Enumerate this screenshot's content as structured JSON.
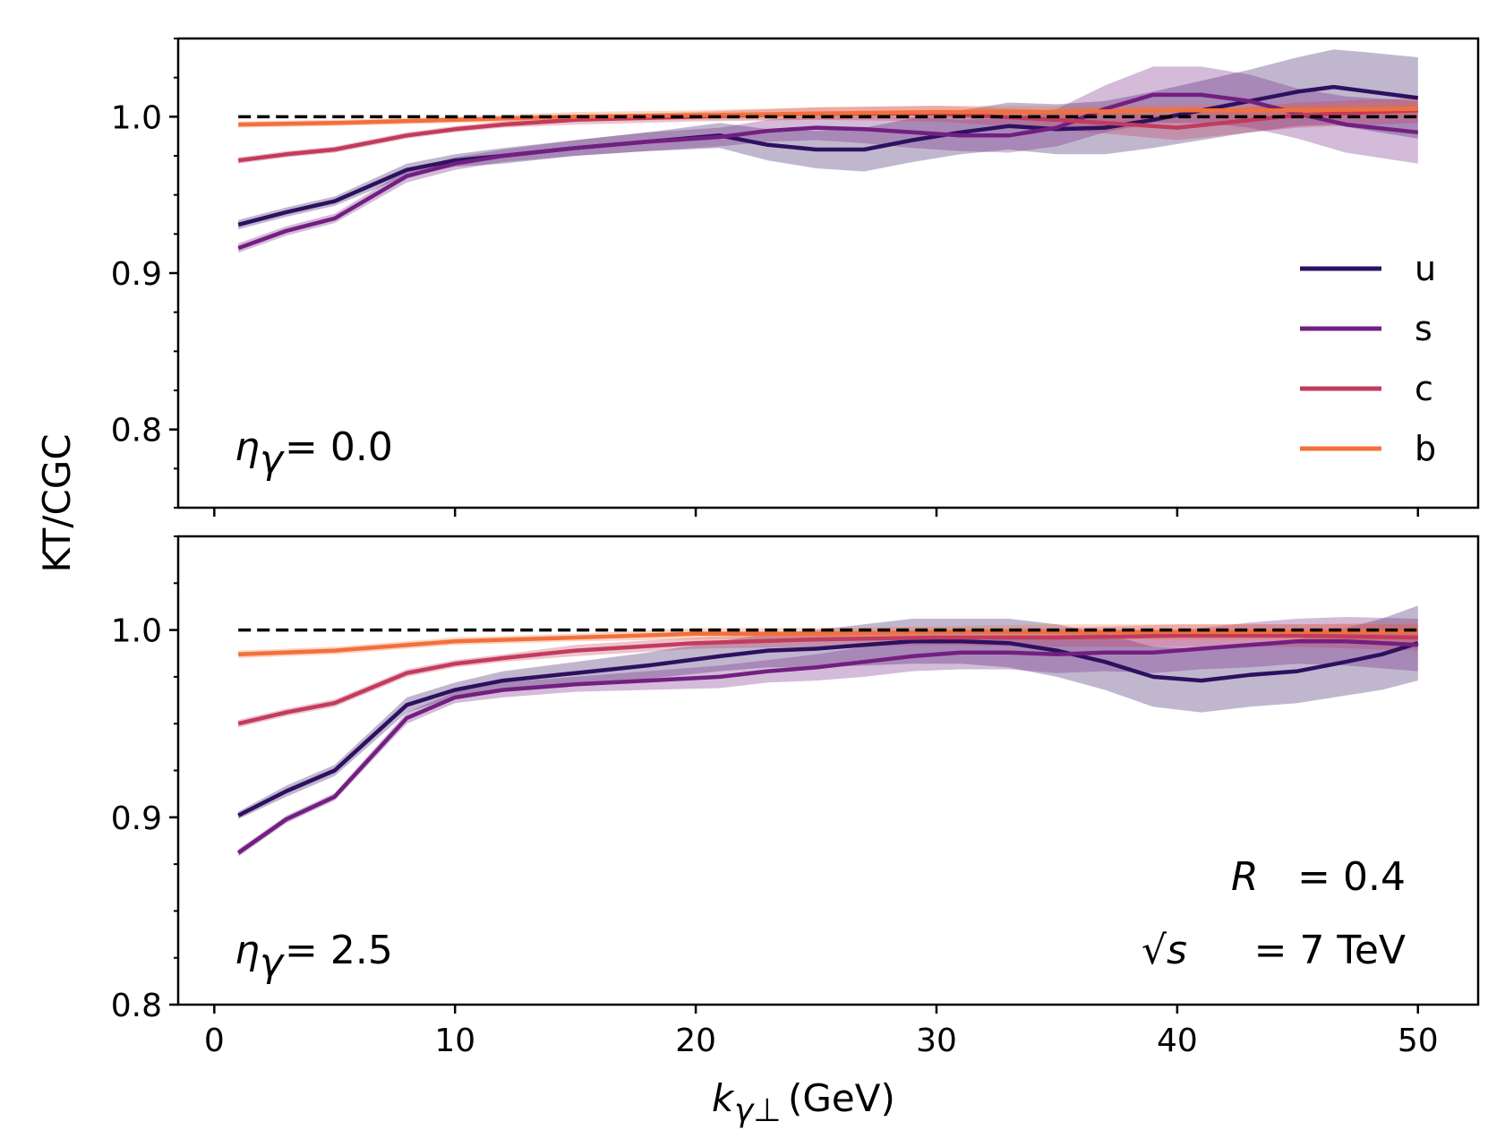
{
  "chart_data": {
    "type": "line",
    "ylabel": "KT/CGC",
    "xlabel": "k",
    "xlabel_sub": "γ⊥",
    "xlabel_unit": "(GeV)",
    "xlim": [
      -1.5,
      52.5
    ],
    "xticks": [
      0,
      10,
      20,
      30,
      40,
      50
    ],
    "legend": [
      "u",
      "s",
      "c",
      "b"
    ],
    "colors": {
      "u": "#2d1160",
      "s": "#721f81",
      "c": "#c33b5c",
      "b": "#f2703c",
      "reference": "#000000"
    },
    "reference_line": 1.0,
    "panels": [
      {
        "name": "top",
        "eta_label": "η",
        "eta_sub": "γ",
        "eta_value": "= 0.0",
        "ylim": [
          0.75,
          1.05
        ],
        "yticks": [
          "0.8",
          "0.9",
          "1.0"
        ],
        "series": [
          {
            "name": "u",
            "x": [
              1,
              3,
              5,
              8,
              10,
              12,
              15,
              18,
              21,
              23,
              25,
              27,
              29,
              31,
              33,
              35,
              37,
              39,
              41,
              43,
              45,
              46.5,
              48,
              50
            ],
            "y": [
              0.931,
              0.939,
              0.946,
              0.966,
              0.972,
              0.975,
              0.98,
              0.984,
              0.988,
              0.982,
              0.979,
              0.979,
              0.985,
              0.99,
              0.994,
              0.992,
              0.993,
              0.998,
              1.004,
              1.01,
              1.016,
              1.019,
              1.016,
              1.012
            ],
            "band": [
              0.003,
              0.003,
              0.003,
              0.004,
              0.004,
              0.005,
              0.005,
              0.006,
              0.008,
              0.01,
              0.012,
              0.014,
              0.014,
              0.014,
              0.015,
              0.016,
              0.017,
              0.018,
              0.019,
              0.02,
              0.022,
              0.024,
              0.025,
              0.026
            ]
          },
          {
            "name": "s",
            "x": [
              1,
              3,
              5,
              8,
              10,
              12,
              15,
              18,
              21,
              23,
              25,
              27,
              29,
              31,
              33,
              35,
              37,
              39,
              41,
              43,
              45,
              47,
              50
            ],
            "y": [
              0.916,
              0.927,
              0.935,
              0.962,
              0.97,
              0.975,
              0.98,
              0.984,
              0.987,
              0.991,
              0.993,
              0.992,
              0.99,
              0.988,
              0.988,
              0.993,
              1.005,
              1.014,
              1.014,
              1.01,
              1.002,
              0.995,
              0.99
            ],
            "band": [
              0.003,
              0.003,
              0.003,
              0.004,
              0.004,
              0.004,
              0.005,
              0.006,
              0.006,
              0.007,
              0.008,
              0.009,
              0.01,
              0.01,
              0.011,
              0.012,
              0.015,
              0.018,
              0.018,
              0.017,
              0.016,
              0.018,
              0.02
            ]
          },
          {
            "name": "c",
            "x": [
              1,
              3,
              5,
              8,
              10,
              12,
              15,
              20,
              25,
              30,
              35,
              40,
              45,
              50
            ],
            "y": [
              0.972,
              0.976,
              0.979,
              0.988,
              0.992,
              0.995,
              0.998,
              1.0,
              1.002,
              1.002,
              0.998,
              0.993,
              1.001,
              1.004
            ],
            "band": [
              0.002,
              0.002,
              0.002,
              0.002,
              0.002,
              0.002,
              0.003,
              0.003,
              0.004,
              0.005,
              0.006,
              0.008,
              0.008,
              0.008
            ]
          },
          {
            "name": "b",
            "x": [
              1,
              5,
              10,
              15,
              20,
              25,
              30,
              35,
              40,
              45,
              50
            ],
            "y": [
              0.995,
              0.996,
              0.998,
              1.0,
              1.001,
              1.002,
              1.003,
              1.003,
              1.004,
              1.004,
              1.005
            ],
            "band": [
              0.002,
              0.002,
              0.002,
              0.003,
              0.003,
              0.004,
              0.004,
              0.004,
              0.004,
              0.004,
              0.005
            ]
          }
        ]
      },
      {
        "name": "bottom",
        "eta_label": "η",
        "eta_sub": "γ",
        "eta_value": "= 2.5",
        "ylim": [
          0.8,
          1.05
        ],
        "yticks": [
          "0.8",
          "0.9",
          "1.0"
        ],
        "annotation_R": "R",
        "annotation_R_value": "= 0.4",
        "annotation_s": "√s",
        "annotation_s_value": "= 7 TeV",
        "series": [
          {
            "name": "u",
            "x": [
              1,
              3,
              5,
              8,
              10,
              12,
              15,
              18,
              21,
              23,
              25,
              27,
              29,
              31,
              33,
              35,
              37,
              39,
              41,
              43,
              45,
              47,
              48.5,
              50
            ],
            "y": [
              0.901,
              0.914,
              0.925,
              0.96,
              0.968,
              0.973,
              0.977,
              0.981,
              0.986,
              0.989,
              0.99,
              0.992,
              0.994,
              0.994,
              0.993,
              0.989,
              0.983,
              0.975,
              0.973,
              0.976,
              0.978,
              0.983,
              0.987,
              0.993
            ],
            "band": [
              0.002,
              0.003,
              0.003,
              0.004,
              0.004,
              0.005,
              0.006,
              0.007,
              0.008,
              0.009,
              0.01,
              0.011,
              0.012,
              0.012,
              0.013,
              0.014,
              0.015,
              0.016,
              0.017,
              0.017,
              0.017,
              0.018,
              0.019,
              0.02
            ]
          },
          {
            "name": "s",
            "x": [
              1,
              3,
              5,
              8,
              10,
              12,
              15,
              18,
              21,
              23,
              25,
              27,
              29,
              31,
              33,
              35,
              37,
              39,
              41,
              43,
              45,
              47,
              50
            ],
            "y": [
              0.881,
              0.899,
              0.911,
              0.953,
              0.964,
              0.968,
              0.971,
              0.973,
              0.975,
              0.978,
              0.98,
              0.983,
              0.986,
              0.988,
              0.988,
              0.987,
              0.988,
              0.988,
              0.99,
              0.992,
              0.994,
              0.994,
              0.992
            ],
            "band": [
              0.002,
              0.002,
              0.002,
              0.003,
              0.003,
              0.004,
              0.004,
              0.005,
              0.006,
              0.006,
              0.007,
              0.008,
              0.008,
              0.009,
              0.009,
              0.01,
              0.01,
              0.011,
              0.011,
              0.012,
              0.012,
              0.013,
              0.014
            ]
          },
          {
            "name": "c",
            "x": [
              1,
              3,
              5,
              8,
              10,
              12,
              15,
              20,
              25,
              30,
              35,
              40,
              45,
              50
            ],
            "y": [
              0.95,
              0.956,
              0.961,
              0.977,
              0.982,
              0.985,
              0.989,
              0.993,
              0.995,
              0.996,
              0.996,
              0.997,
              0.997,
              0.996
            ],
            "band": [
              0.002,
              0.002,
              0.002,
              0.002,
              0.002,
              0.002,
              0.003,
              0.003,
              0.004,
              0.004,
              0.005,
              0.006,
              0.006,
              0.007
            ]
          },
          {
            "name": "b",
            "x": [
              1,
              5,
              10,
              15,
              20,
              25,
              30,
              35,
              40,
              45,
              50
            ],
            "y": [
              0.987,
              0.989,
              0.994,
              0.996,
              0.998,
              0.998,
              0.999,
              0.999,
              0.999,
              0.999,
              0.999
            ],
            "band": [
              0.002,
              0.002,
              0.002,
              0.002,
              0.003,
              0.003,
              0.003,
              0.004,
              0.004,
              0.004,
              0.005
            ]
          }
        ]
      }
    ]
  }
}
